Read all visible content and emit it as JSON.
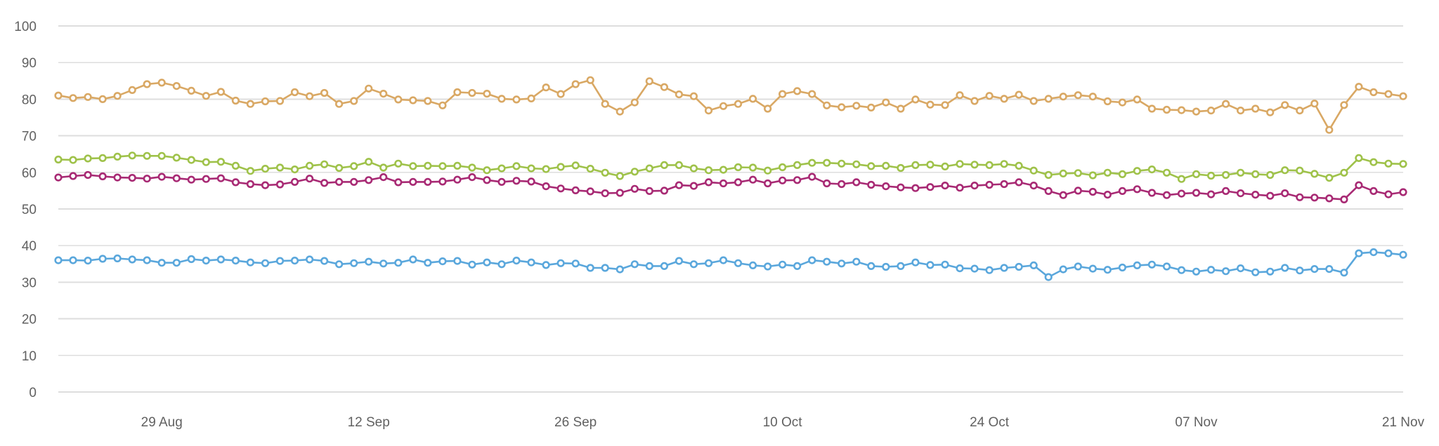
{
  "chart_data": {
    "type": "line",
    "title": "",
    "legend": "none",
    "grid": "horizontal-only",
    "x_axis": {
      "num_points": 92,
      "cadence": "daily",
      "tick_labels": [
        "29 Aug",
        "12 Sep",
        "26 Sep",
        "10 Oct",
        "24 Oct",
        "07 Nov",
        "21 Nov"
      ],
      "tick_point_indices": [
        7,
        21,
        35,
        49,
        63,
        77,
        91
      ]
    },
    "y_axis": {
      "min": 0,
      "max": 100,
      "ticks": [
        0,
        10,
        20,
        30,
        40,
        50,
        60,
        70,
        80,
        90,
        100
      ]
    },
    "series": [
      {
        "name": "orange",
        "color": "#D9A864",
        "values": [
          81.0,
          80.3,
          80.6,
          80.0,
          80.9,
          82.5,
          84.1,
          84.5,
          83.6,
          82.3,
          80.9,
          82.0,
          79.6,
          78.7,
          79.4,
          79.5,
          81.9,
          80.8,
          81.7,
          78.7,
          79.5,
          82.9,
          81.5,
          79.9,
          79.7,
          79.5,
          78.3,
          81.9,
          81.7,
          81.5,
          80.1,
          79.9,
          80.2,
          83.2,
          81.4,
          84.1,
          85.2,
          78.7,
          76.6,
          79.1,
          84.9,
          83.3,
          81.3,
          80.8,
          76.9,
          78.1,
          78.7,
          80.1,
          77.4,
          81.4,
          82.2,
          81.4,
          78.3,
          77.8,
          78.2,
          77.7,
          79.1,
          77.4,
          79.9,
          78.5,
          78.4,
          81.1,
          79.5,
          80.9,
          80.1,
          81.2,
          79.5,
          80.1,
          80.7,
          81.1,
          80.7,
          79.4,
          79.1,
          79.9,
          77.4,
          77.1,
          77.0,
          76.6,
          76.9,
          78.7,
          76.9,
          77.4,
          76.4,
          78.4,
          76.9,
          78.8,
          71.6,
          78.4,
          83.4,
          81.9,
          81.4,
          80.8
        ]
      },
      {
        "name": "green",
        "color": "#9FC24A",
        "values": [
          63.5,
          63.4,
          63.8,
          63.9,
          64.3,
          64.6,
          64.5,
          64.5,
          64.0,
          63.4,
          62.8,
          62.9,
          61.8,
          60.4,
          61.0,
          61.3,
          60.8,
          61.8,
          62.2,
          61.2,
          61.7,
          62.9,
          61.3,
          62.4,
          61.7,
          61.8,
          61.7,
          61.8,
          61.3,
          60.6,
          61.1,
          61.7,
          61.1,
          60.9,
          61.5,
          61.9,
          61.0,
          59.9,
          59.0,
          60.2,
          61.1,
          62.0,
          62.0,
          61.1,
          60.6,
          60.7,
          61.4,
          61.3,
          60.5,
          61.4,
          62.0,
          62.6,
          62.6,
          62.4,
          62.2,
          61.7,
          61.8,
          61.2,
          62.0,
          62.1,
          61.6,
          62.3,
          62.1,
          62.0,
          62.3,
          61.8,
          60.5,
          59.3,
          59.7,
          59.8,
          59.2,
          59.9,
          59.5,
          60.4,
          60.8,
          59.9,
          58.2,
          59.5,
          59.1,
          59.3,
          59.9,
          59.5,
          59.3,
          60.6,
          60.5,
          59.6,
          58.5,
          59.9,
          63.9,
          62.8,
          62.4,
          62.3
        ]
      },
      {
        "name": "purple",
        "color": "#A82A74",
        "values": [
          58.6,
          59.0,
          59.3,
          58.9,
          58.6,
          58.5,
          58.3,
          58.8,
          58.4,
          58.0,
          58.2,
          58.4,
          57.3,
          56.8,
          56.5,
          56.7,
          57.4,
          58.3,
          57.1,
          57.4,
          57.4,
          57.9,
          58.7,
          57.3,
          57.4,
          57.4,
          57.5,
          58.0,
          58.7,
          57.9,
          57.4,
          57.7,
          57.5,
          56.2,
          55.6,
          55.1,
          54.8,
          54.3,
          54.4,
          55.5,
          54.9,
          55.0,
          56.5,
          56.3,
          57.3,
          57.0,
          57.3,
          58.0,
          57.0,
          57.8,
          57.9,
          58.8,
          57.0,
          56.8,
          57.3,
          56.6,
          56.2,
          55.9,
          55.7,
          56.0,
          56.4,
          55.8,
          56.4,
          56.6,
          56.8,
          57.3,
          56.4,
          54.9,
          53.8,
          55.0,
          54.7,
          53.9,
          54.9,
          55.4,
          54.4,
          53.8,
          54.2,
          54.4,
          54.0,
          54.9,
          54.3,
          53.9,
          53.6,
          54.3,
          53.2,
          53.1,
          52.9,
          52.6,
          56.5,
          54.9,
          54.0,
          54.6
        ]
      },
      {
        "name": "blue",
        "color": "#5AA7DC",
        "values": [
          36.0,
          36.0,
          35.9,
          36.4,
          36.5,
          36.2,
          36.0,
          35.3,
          35.3,
          36.3,
          35.9,
          36.2,
          35.9,
          35.4,
          35.2,
          35.8,
          35.9,
          36.2,
          35.8,
          34.9,
          35.2,
          35.6,
          35.1,
          35.3,
          36.2,
          35.3,
          35.7,
          35.8,
          34.8,
          35.4,
          34.9,
          35.9,
          35.4,
          34.7,
          35.2,
          35.1,
          33.9,
          33.9,
          33.5,
          34.9,
          34.4,
          34.4,
          35.8,
          34.9,
          35.2,
          36.0,
          35.2,
          34.6,
          34.3,
          34.8,
          34.4,
          36.0,
          35.6,
          35.1,
          35.6,
          34.4,
          34.2,
          34.4,
          35.4,
          34.7,
          34.8,
          33.8,
          33.7,
          33.3,
          33.9,
          34.2,
          34.6,
          31.4,
          33.5,
          34.3,
          33.7,
          33.4,
          34.0,
          34.6,
          34.8,
          34.3,
          33.3,
          32.9,
          33.4,
          33.0,
          33.8,
          32.7,
          32.9,
          33.9,
          33.2,
          33.6,
          33.6,
          32.6,
          37.9,
          38.2,
          37.9,
          37.5
        ]
      }
    ]
  },
  "colors": {
    "background": "#FFFFFF",
    "gridline": "#DEDEDE",
    "axis_label": "#616161",
    "marker_fill": "#FFFFFF"
  }
}
